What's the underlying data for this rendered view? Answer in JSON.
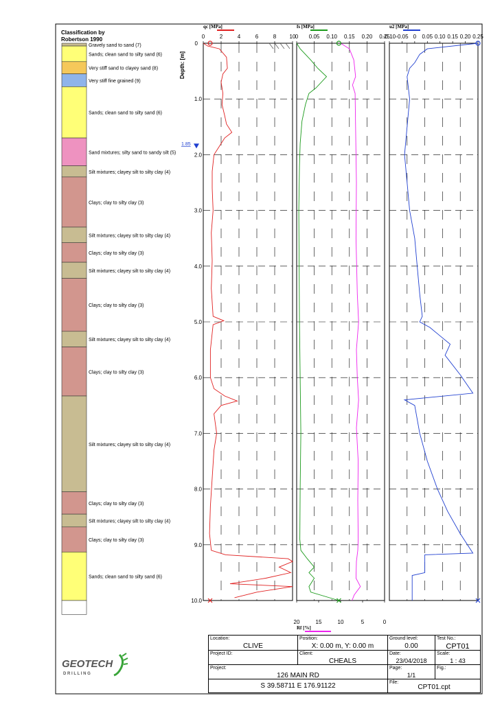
{
  "legend": {
    "title_line1": "Classification by",
    "title_line2": "Robertson 1990",
    "colors": {
      "yellow": "#ffff77",
      "orange": "#f5c85a",
      "blue": "#8fb4ea",
      "pink": "#ee92c0",
      "khaki": "#c8bc92",
      "rose": "#d2968e"
    }
  },
  "layers": [
    {
      "top": 0.0,
      "bottom": 0.05,
      "color": "khaki",
      "label": "Gravely sand to sand (7)"
    },
    {
      "top": 0.05,
      "bottom": 0.33,
      "color": "yellow",
      "label": "Sands; clean sand to silty sand (6)"
    },
    {
      "top": 0.33,
      "bottom": 0.55,
      "color": "orange",
      "label": "Very stiff sand to clayey sand (8)"
    },
    {
      "top": 0.55,
      "bottom": 0.78,
      "color": "blue",
      "label": "Very stiff fine grained (9)"
    },
    {
      "top": 0.78,
      "bottom": 1.7,
      "color": "yellow",
      "label": "Sands; clean sand to silty sand (6)"
    },
    {
      "top": 1.7,
      "bottom": 2.2,
      "color": "pink",
      "label": "Sand mixtures; silty sand to sandy silt (5)"
    },
    {
      "top": 2.2,
      "bottom": 2.4,
      "color": "khaki",
      "label": "Silt mixtures; clayey silt to silty clay (4)"
    },
    {
      "top": 2.4,
      "bottom": 3.3,
      "color": "rose",
      "label": "Clays; clay to silty clay (3)"
    },
    {
      "top": 3.3,
      "bottom": 3.58,
      "color": "khaki",
      "label": "Silt mixtures; clayey silt to silty clay (4)"
    },
    {
      "top": 3.58,
      "bottom": 3.93,
      "color": "rose",
      "label": "Clays; clay to silty clay (3)"
    },
    {
      "top": 3.93,
      "bottom": 4.22,
      "color": "khaki",
      "label": "Silt mixtures; clayey silt to silty clay (4)"
    },
    {
      "top": 4.22,
      "bottom": 5.17,
      "color": "rose",
      "label": "Clays; clay to silty clay (3)"
    },
    {
      "top": 5.17,
      "bottom": 5.45,
      "color": "khaki",
      "label": "Silt mixtures; clayey silt to silty clay (4)"
    },
    {
      "top": 5.45,
      "bottom": 6.33,
      "color": "rose",
      "label": "Clays; clay to silty clay (3)"
    },
    {
      "top": 6.33,
      "bottom": 8.05,
      "color": "khaki",
      "label": "Silt mixtures; clayey silt to silty clay (4)"
    },
    {
      "top": 8.05,
      "bottom": 8.45,
      "color": "rose",
      "label": "Clays; clay to silty clay (3)"
    },
    {
      "top": 8.45,
      "bottom": 8.68,
      "color": "khaki",
      "label": "Silt mixtures; clayey silt to silty clay (4)"
    },
    {
      "top": 8.68,
      "bottom": 9.13,
      "color": "rose",
      "label": "Clays; clay to silty clay (3)"
    },
    {
      "top": 9.13,
      "bottom": 10.0,
      "color": "yellow",
      "label": "Sands; clean sand to silty sand (6)"
    },
    {
      "top": 10.0,
      "bottom": 10.25,
      "color": "white",
      "label": ""
    }
  ],
  "chart_data": [
    {
      "type": "line",
      "name": "qc",
      "title": "qc [MPa]",
      "color": "#e02020",
      "xlim": [
        0,
        10
      ],
      "xticks": [
        0,
        2,
        4,
        6,
        8,
        10
      ],
      "xtick_labels": [
        "0",
        "2",
        "4",
        "6",
        "8",
        "10"
      ],
      "ylim": [
        0,
        10
      ],
      "ylabel": "Depth: [m]",
      "depth_ticks": [
        1,
        2,
        3,
        4,
        5,
        6,
        7,
        8,
        9,
        10
      ],
      "depth_tick_labels": [
        "1.0",
        "2.0",
        "3.0",
        "4.0",
        "5.0",
        "6.0",
        "7.0",
        "8.0",
        "9.0",
        "10.0"
      ],
      "water_level": 1.85,
      "water_level_label": "1.85",
      "points": [
        [
          0,
          0.0
        ],
        [
          0.5,
          0.05
        ],
        [
          1.8,
          0.1
        ],
        [
          2.6,
          0.25
        ],
        [
          2.7,
          0.45
        ],
        [
          2.2,
          0.55
        ],
        [
          2.0,
          0.7
        ],
        [
          2.2,
          0.9
        ],
        [
          2.1,
          1.1
        ],
        [
          2.4,
          1.3
        ],
        [
          2.6,
          1.45
        ],
        [
          3.2,
          1.6
        ],
        [
          2.4,
          1.7
        ],
        [
          1.8,
          1.85
        ],
        [
          1.2,
          2.0
        ],
        [
          1.0,
          2.3
        ],
        [
          1.0,
          2.6
        ],
        [
          1.1,
          3.0
        ],
        [
          0.9,
          3.4
        ],
        [
          1.0,
          3.9
        ],
        [
          0.9,
          4.4
        ],
        [
          1.1,
          4.9
        ],
        [
          2.3,
          4.98
        ],
        [
          1.1,
          5.05
        ],
        [
          0.8,
          5.5
        ],
        [
          0.8,
          6.0
        ],
        [
          1.2,
          6.2
        ],
        [
          2.4,
          6.33
        ],
        [
          3.8,
          6.42
        ],
        [
          2.0,
          6.5
        ],
        [
          1.2,
          6.65
        ],
        [
          1.5,
          7.0
        ],
        [
          1.2,
          7.3
        ],
        [
          1.0,
          7.8
        ],
        [
          0.8,
          8.3
        ],
        [
          0.7,
          8.8
        ],
        [
          0.9,
          9.1
        ],
        [
          2.5,
          9.18
        ],
        [
          9.5,
          9.25
        ],
        [
          10.0,
          9.3
        ],
        [
          8.5,
          9.4
        ],
        [
          9.8,
          9.5
        ],
        [
          7.0,
          9.6
        ],
        [
          3.0,
          9.7
        ],
        [
          10.0,
          9.75
        ],
        [
          6.0,
          9.85
        ],
        [
          3.5,
          9.95
        ]
      ]
    },
    {
      "type": "line",
      "name": "fs",
      "title": "fs [MPa]",
      "color": "#1a9a1a",
      "xlim": [
        0,
        0.25
      ],
      "xticks": [
        0,
        0.05,
        0.1,
        0.15,
        0.2,
        0.25
      ],
      "xtick_labels": [
        "0",
        "0.05",
        "0.10",
        "0.15",
        "0.20",
        "0.25"
      ],
      "ylim": [
        0,
        10
      ],
      "points": [
        [
          0,
          0.0
        ],
        [
          0.01,
          0.1
        ],
        [
          0.04,
          0.3
        ],
        [
          0.06,
          0.45
        ],
        [
          0.085,
          0.6
        ],
        [
          0.055,
          0.8
        ],
        [
          0.035,
          0.9
        ],
        [
          0.025,
          1.1
        ],
        [
          0.015,
          1.4
        ],
        [
          0.01,
          1.8
        ],
        [
          0.008,
          2.2
        ],
        [
          0.006,
          3.0
        ],
        [
          0.007,
          4.0
        ],
        [
          0.008,
          5.0
        ],
        [
          0.01,
          6.0
        ],
        [
          0.012,
          7.0
        ],
        [
          0.01,
          8.0
        ],
        [
          0.009,
          8.9
        ],
        [
          0.012,
          9.1
        ],
        [
          0.03,
          9.25
        ],
        [
          0.05,
          9.4
        ],
        [
          0.035,
          9.5
        ],
        [
          0.05,
          9.6
        ],
        [
          0.035,
          9.75
        ],
        [
          0.04,
          9.85
        ],
        [
          0.12,
          10.0
        ]
      ]
    },
    {
      "type": "line",
      "name": "Rf",
      "title": "Rf [%]",
      "color": "#ee22ee",
      "xlim": [
        20,
        0
      ],
      "xticks": [
        20,
        15,
        10,
        5,
        0
      ],
      "xtick_labels": [
        "20",
        "15",
        "10",
        "5",
        "0"
      ],
      "ylim": [
        0,
        10
      ],
      "points": [
        [
          10,
          0.0
        ],
        [
          8,
          0.1
        ],
        [
          7,
          0.3
        ],
        [
          6.6,
          0.6
        ],
        [
          7.3,
          0.75
        ],
        [
          6.7,
          0.9
        ],
        [
          6.6,
          1.5
        ],
        [
          6.4,
          2.5
        ],
        [
          6.5,
          3.5
        ],
        [
          6.2,
          4.5
        ],
        [
          5.9,
          5.0
        ],
        [
          6.4,
          5.5
        ],
        [
          6.2,
          6.0
        ],
        [
          5.9,
          6.4
        ],
        [
          6.4,
          6.9
        ],
        [
          6.0,
          7.5
        ],
        [
          6.1,
          8.2
        ],
        [
          6.0,
          8.9
        ],
        [
          6.1,
          9.1
        ],
        [
          6.4,
          9.3
        ],
        [
          6.5,
          9.6
        ],
        [
          5.5,
          9.75
        ],
        [
          6.9,
          9.9
        ],
        [
          7.4,
          10.0
        ]
      ]
    },
    {
      "type": "line",
      "name": "u2",
      "title": "u2 [MPa]",
      "color": "#1f3fd0",
      "xlim": [
        -0.1,
        0.25
      ],
      "xticks": [
        -0.1,
        -0.05,
        0,
        0.05,
        0.1,
        0.15,
        0.2,
        0.25
      ],
      "xtick_labels": [
        "-0.10",
        "-0.05",
        "0",
        "0.05",
        "0.10",
        "0.15",
        "0.20",
        "0.25"
      ],
      "ylim": [
        0,
        10
      ],
      "points": [
        [
          0.25,
          0.0
        ],
        [
          0.05,
          0.1
        ],
        [
          0.02,
          0.2
        ],
        [
          0.0,
          0.35
        ],
        [
          -0.02,
          0.45
        ],
        [
          -0.03,
          0.6
        ],
        [
          -0.02,
          1.0
        ],
        [
          -0.03,
          1.5
        ],
        [
          -0.04,
          2.0
        ],
        [
          -0.03,
          2.5
        ],
        [
          -0.02,
          3.0
        ],
        [
          0.0,
          3.5
        ],
        [
          0.01,
          4.0
        ],
        [
          0.02,
          4.5
        ],
        [
          0.03,
          4.9
        ],
        [
          0.02,
          5.0
        ],
        [
          0.06,
          5.1
        ],
        [
          0.1,
          5.25
        ],
        [
          0.14,
          5.4
        ],
        [
          0.12,
          5.6
        ],
        [
          0.18,
          5.95
        ],
        [
          0.23,
          6.28
        ],
        [
          -0.04,
          6.4
        ],
        [
          0.0,
          6.5
        ],
        [
          0.02,
          7.0
        ],
        [
          0.05,
          7.5
        ],
        [
          0.09,
          8.0
        ],
        [
          0.13,
          8.4
        ],
        [
          0.18,
          8.8
        ],
        [
          0.23,
          9.15
        ],
        [
          0.04,
          9.18
        ],
        [
          0.04,
          9.5
        ],
        [
          -0.01,
          9.55
        ],
        [
          -0.01,
          10.0
        ]
      ]
    }
  ],
  "title_block": {
    "location_label": "Location:",
    "location": "CLIVE",
    "position_label": "Position:",
    "position": "X: 0.00 m, Y: 0.00 m",
    "ground_level_label": "Ground level:",
    "ground_level": "0.00",
    "test_no_label": "Test No.:",
    "test_no": "CPT01",
    "project_id_label": "Project ID:",
    "project_id": "",
    "client_label": "Client:",
    "client": "CHEALS",
    "date_label": "Date:",
    "date": "23/04/2018",
    "scale_label": "Scale:",
    "scale": "1 : 43",
    "project_label": "Project:",
    "project": "126 MAIN RD",
    "page_label": "Page:",
    "page": "1/1",
    "fig_label": "Fig.:",
    "fig": "",
    "coords": "S 39.58711 E 176.91122",
    "file_label": "File:",
    "file": "CPT01.cpt"
  },
  "logo": {
    "word1": "GEOTECH",
    "word2": "D R I L L I N G",
    "brand_color": "#3aa53a"
  }
}
